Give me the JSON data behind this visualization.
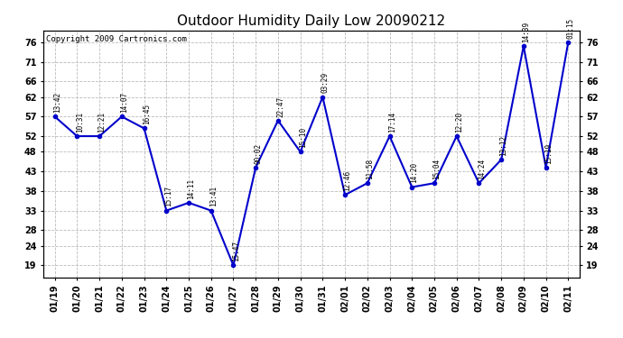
{
  "title": "Outdoor Humidity Daily Low 20090212",
  "copyright": "Copyright 2009 Cartronics.com",
  "x_labels": [
    "01/19",
    "01/20",
    "01/21",
    "01/22",
    "01/23",
    "01/24",
    "01/25",
    "01/26",
    "01/27",
    "01/28",
    "01/29",
    "01/30",
    "01/31",
    "02/01",
    "02/02",
    "02/03",
    "02/04",
    "02/05",
    "02/06",
    "02/07",
    "02/08",
    "02/09",
    "02/10",
    "02/11"
  ],
  "y_values": [
    57,
    52,
    52,
    57,
    54,
    33,
    35,
    33,
    19,
    44,
    56,
    48,
    62,
    37,
    40,
    52,
    39,
    40,
    52,
    40,
    46,
    75,
    44,
    76
  ],
  "point_labels": [
    "13:42",
    "10:31",
    "12:21",
    "14:07",
    "16:45",
    "15:17",
    "14:11",
    "13:41",
    "15:47",
    "00:02",
    "22:47",
    "15:10",
    "03:29",
    "12:46",
    "11:58",
    "17:14",
    "14:20",
    "15:04",
    "12:20",
    "14:24",
    "13:12",
    "14:39",
    "15:19",
    "01:15"
  ],
  "y_ticks": [
    19,
    24,
    28,
    33,
    38,
    43,
    48,
    52,
    57,
    62,
    66,
    71,
    76
  ],
  "ylim": [
    16,
    79
  ],
  "line_color": "#0000cc",
  "marker_color": "#0000cc",
  "bg_color": "#ffffff",
  "plot_bg_color": "#ffffff",
  "grid_color": "#bbbbbb",
  "title_fontsize": 11,
  "tick_fontsize": 7,
  "copyright_fontsize": 6.5
}
